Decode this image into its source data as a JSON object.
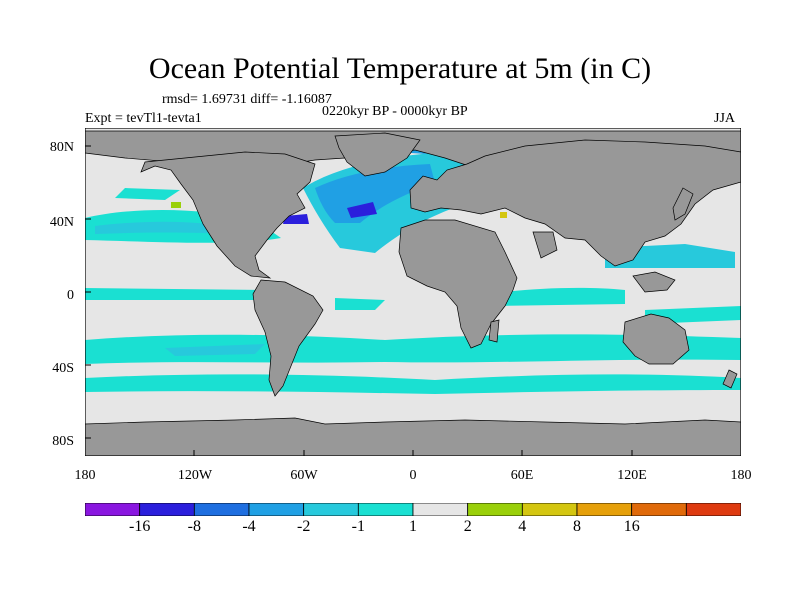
{
  "figure": {
    "title": "Ocean Potential Temperature at 5m (in C)",
    "stats": "rmsd= 1.69731 diff= -1.16087",
    "experiment": "Expt = tevTl1-tevta1",
    "period": "0220kyr BP - 0000kyr BP",
    "season": "JJA"
  },
  "map": {
    "projection": "cylindrical equidistant",
    "lon_range": [
      -180,
      180
    ],
    "lat_range": [
      -90,
      90
    ],
    "lat_ticks": [
      {
        "value": 80,
        "label": "80N"
      },
      {
        "value": 40,
        "label": "40N"
      },
      {
        "value": 0,
        "label": "0"
      },
      {
        "value": -40,
        "label": "40S"
      },
      {
        "value": -80,
        "label": "80S"
      }
    ],
    "lon_ticks": [
      {
        "value": -180,
        "label": "180"
      },
      {
        "value": -120,
        "label": "120W"
      },
      {
        "value": -60,
        "label": "60W"
      },
      {
        "value": 0,
        "label": "0"
      },
      {
        "value": 60,
        "label": "60E"
      },
      {
        "value": 120,
        "label": "120E"
      },
      {
        "value": 180,
        "label": "180"
      }
    ],
    "land_color": "#989898",
    "ocean_neutral_color": "#e6e6e6"
  },
  "colorbar": {
    "colors": [
      "#8a16e0",
      "#2b1fdc",
      "#1f6fe0",
      "#20a0e4",
      "#27c9dc",
      "#1ae0d2",
      "#e6e6e6",
      "#9ad00a",
      "#d4c610",
      "#e6a00a",
      "#e06a0a",
      "#de3a10"
    ],
    "labels": [
      {
        "boundary": 1,
        "text": "-16"
      },
      {
        "boundary": 2,
        "text": "-8"
      },
      {
        "boundary": 3,
        "text": "-4"
      },
      {
        "boundary": 4,
        "text": "-2"
      },
      {
        "boundary": 5,
        "text": "-1"
      },
      {
        "boundary": 6,
        "text": "1"
      },
      {
        "boundary": 7,
        "text": "2"
      },
      {
        "boundary": 8,
        "text": "4"
      },
      {
        "boundary": 9,
        "text": "8"
      },
      {
        "boundary": 10,
        "text": "16"
      }
    ]
  }
}
